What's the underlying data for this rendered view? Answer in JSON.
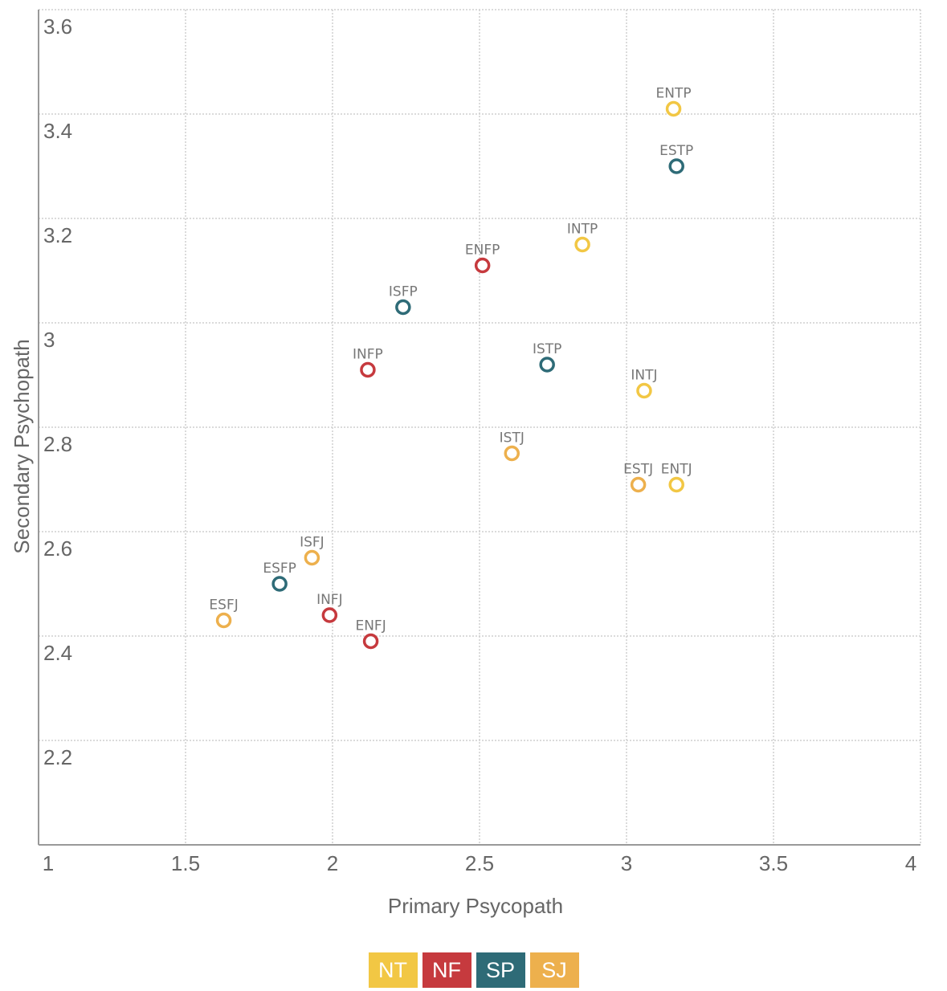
{
  "chart_data": {
    "type": "scatter",
    "title": "",
    "xlabel": "Primary Psycopath",
    "ylabel": "Secondary Psychopath",
    "xlim": [
      1,
      4
    ],
    "ylim": [
      2.0,
      3.6
    ],
    "xticks": [
      1,
      1.5,
      2,
      2.5,
      3,
      3.5,
      4
    ],
    "xtick_labels": [
      "1",
      "1.5",
      "2",
      "2.5",
      "3",
      "3.5",
      "4"
    ],
    "yticks": [
      2.2,
      2.4,
      2.6,
      2.8,
      3.0,
      3.2,
      3.4,
      3.6
    ],
    "ytick_labels": [
      "2.2",
      "2.4",
      "2.6",
      "2.8",
      "3",
      "3.2",
      "3.4",
      "3.6"
    ],
    "grid": true,
    "legend_position": "bottom-center",
    "groups": [
      {
        "name": "NT",
        "color": "#F2C744"
      },
      {
        "name": "NF",
        "color": "#C63A3E"
      },
      {
        "name": "SP",
        "color": "#2E6B77"
      },
      {
        "name": "SJ",
        "color": "#EDB04D"
      }
    ],
    "points": [
      {
        "label": "ENTP",
        "group": "NT",
        "x": 3.16,
        "y": 3.41
      },
      {
        "label": "ESTP",
        "group": "SP",
        "x": 3.17,
        "y": 3.3
      },
      {
        "label": "INTP",
        "group": "NT",
        "x": 2.85,
        "y": 3.15
      },
      {
        "label": "ENFP",
        "group": "NF",
        "x": 2.51,
        "y": 3.11
      },
      {
        "label": "ISFP",
        "group": "SP",
        "x": 2.24,
        "y": 3.03
      },
      {
        "label": "INFP",
        "group": "NF",
        "x": 2.12,
        "y": 2.91
      },
      {
        "label": "ISTP",
        "group": "SP",
        "x": 2.73,
        "y": 2.92
      },
      {
        "label": "INTJ",
        "group": "NT",
        "x": 3.06,
        "y": 2.87
      },
      {
        "label": "ISTJ",
        "group": "SJ",
        "x": 2.61,
        "y": 2.75
      },
      {
        "label": "ESTJ",
        "group": "SJ",
        "x": 3.04,
        "y": 2.69
      },
      {
        "label": "ENTJ",
        "group": "NT",
        "x": 3.17,
        "y": 2.69
      },
      {
        "label": "ISFJ",
        "group": "SJ",
        "x": 1.93,
        "y": 2.55
      },
      {
        "label": "ESFP",
        "group": "SP",
        "x": 1.82,
        "y": 2.5
      },
      {
        "label": "ESFJ",
        "group": "SJ",
        "x": 1.63,
        "y": 2.43
      },
      {
        "label": "INFJ",
        "group": "NF",
        "x": 1.99,
        "y": 2.44
      },
      {
        "label": "ENFJ",
        "group": "NF",
        "x": 2.13,
        "y": 2.39
      }
    ]
  }
}
